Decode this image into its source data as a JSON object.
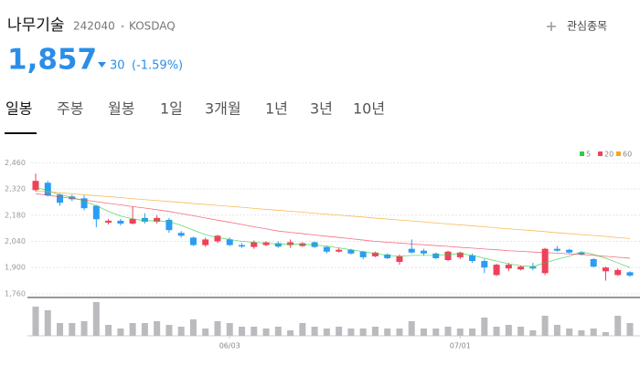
{
  "header": {
    "name": "나무기술",
    "code": "242040",
    "market": "KOSDAQ",
    "watch": "관심종목",
    "price": "1,857",
    "change": "30",
    "change_pct": "(-1.59%)"
  },
  "tabs": [
    "일봉",
    "주봉",
    "월봉",
    "1일",
    "3개월",
    "1년",
    "3년",
    "10년"
  ],
  "chart_data": {
    "type": "candlestick",
    "categories": [
      null,
      null,
      null,
      null,
      null,
      null,
      null,
      null,
      null,
      null,
      null,
      null,
      null,
      null,
      null,
      null,
      "06/03",
      null,
      null,
      null,
      null,
      null,
      null,
      null,
      null,
      null,
      null,
      null,
      null,
      null,
      null,
      null,
      null,
      null,
      null,
      "07/01",
      null,
      null,
      null,
      null,
      null,
      null,
      null,
      null,
      null,
      null,
      null,
      null,
      null,
      null
    ],
    "open": [
      2314,
      2353,
      2290,
      2280,
      2270,
      2230,
      2140,
      2150,
      2135,
      2165,
      2145,
      2155,
      2085,
      2060,
      2020,
      2040,
      2050,
      2020,
      2010,
      2020,
      2030,
      2020,
      2015,
      2035,
      2010,
      1985,
      1995,
      1985,
      1960,
      1970,
      1930,
      2000,
      1990,
      1975,
      1940,
      1955,
      1965,
      1935,
      1860,
      1895,
      1890,
      1905,
      1870,
      2000,
      1995,
      1980,
      1945,
      1880,
      1860,
      1875
    ],
    "high": [
      2402,
      2363,
      2295,
      2290,
      2285,
      2235,
      2160,
      2160,
      2225,
      2190,
      2180,
      2165,
      2095,
      2065,
      2060,
      2075,
      2060,
      2030,
      2045,
      2040,
      2040,
      2050,
      2035,
      2040,
      2015,
      2005,
      2000,
      1990,
      1985,
      1975,
      1970,
      2050,
      2000,
      1980,
      1990,
      1985,
      1975,
      1945,
      1920,
      1925,
      1910,
      1925,
      2005,
      2015,
      2000,
      1985,
      1950,
      1905,
      1895,
      1880
    ],
    "low": [
      2305,
      2280,
      2230,
      2255,
      2205,
      2115,
      2130,
      2125,
      2130,
      2135,
      2135,
      2085,
      2060,
      2015,
      2010,
      2030,
      2015,
      2005,
      2000,
      2015,
      2005,
      2005,
      2010,
      2005,
      1975,
      1980,
      1970,
      1945,
      1955,
      1945,
      1915,
      1975,
      1965,
      1945,
      1935,
      1945,
      1925,
      1870,
      1855,
      1880,
      1885,
      1885,
      1860,
      1985,
      1975,
      1965,
      1900,
      1830,
      1855,
      1850
    ],
    "close": [
      2363,
      2285,
      2246,
      2265,
      2217,
      2158,
      2150,
      2135,
      2160,
      2145,
      2165,
      2100,
      2070,
      2020,
      2050,
      2070,
      2020,
      2012,
      2035,
      2035,
      2012,
      2035,
      2030,
      2010,
      1985,
      1995,
      1975,
      1955,
      1980,
      1950,
      1960,
      1980,
      1975,
      1950,
      1985,
      1980,
      1935,
      1900,
      1915,
      1915,
      1905,
      1895,
      2000,
      1990,
      1980,
      1970,
      1905,
      1900,
      1887,
      1857
    ],
    "volume": [
      32,
      28,
      14,
      14,
      16,
      37,
      12,
      8,
      14,
      14,
      16,
      12,
      10,
      18,
      8,
      16,
      14,
      10,
      10,
      8,
      10,
      6,
      14,
      10,
      8,
      10,
      8,
      8,
      10,
      8,
      8,
      16,
      8,
      8,
      10,
      8,
      8,
      20,
      10,
      12,
      10,
      6,
      22,
      12,
      8,
      6,
      8,
      4,
      22,
      14
    ],
    "up_color": "#f0405a",
    "down_color": "#2a9df4",
    "volume_color": "#bbbbbf",
    "series": [
      {
        "name": "5",
        "color": "#2ecc40",
        "values": [
          2330,
          2310,
          2290,
          2275,
          2255,
          2230,
          2200,
          2175,
          2160,
          2150,
          2150,
          2145,
          2125,
          2100,
          2075,
          2060,
          2050,
          2040,
          2035,
          2030,
          2025,
          2025,
          2025,
          2020,
          2015,
          2005,
          1995,
          1985,
          1975,
          1965,
          1960,
          1965,
          1965,
          1965,
          1970,
          1975,
          1965,
          1950,
          1935,
          1920,
          1910,
          1905,
          1925,
          1945,
          1960,
          1985,
          1970,
          1950,
          1925,
          1900
        ]
      },
      {
        "name": "20",
        "color": "#f0405a",
        "values": [
          2295,
          2286,
          2278,
          2269,
          2261,
          2252,
          2243,
          2235,
          2226,
          2218,
          2209,
          2200,
          2188,
          2177,
          2165,
          2153,
          2142,
          2130,
          2118,
          2107,
          2095,
          2088,
          2081,
          2074,
          2067,
          2061,
          2054,
          2047,
          2040,
          2035,
          2031,
          2026,
          2022,
          2017,
          2013,
          2008,
          2004,
          1999,
          1995,
          1990,
          1987,
          1983,
          1980,
          1977,
          1973,
          1970,
          1965,
          1960,
          1955,
          1950
        ]
      },
      {
        "name": "60",
        "color": "#f5a623",
        "values": [
          2310,
          2305,
          2300,
          2294,
          2289,
          2284,
          2279,
          2274,
          2268,
          2263,
          2258,
          2253,
          2248,
          2242,
          2237,
          2232,
          2227,
          2222,
          2216,
          2211,
          2206,
          2201,
          2196,
          2190,
          2185,
          2180,
          2175,
          2170,
          2164,
          2159,
          2154,
          2149,
          2144,
          2138,
          2133,
          2128,
          2123,
          2118,
          2112,
          2107,
          2102,
          2097,
          2092,
          2086,
          2081,
          2076,
          2071,
          2066,
          2060,
          2055
        ]
      }
    ],
    "ylim": [
      1740,
      2530
    ],
    "yticks": [
      {
        "value": 2460,
        "label": "2,460"
      },
      {
        "value": 2320,
        "label": "2,320"
      },
      {
        "value": 2180,
        "label": "2,180"
      },
      {
        "value": 2040,
        "label": "2,040"
      },
      {
        "value": 1900,
        "label": "1,900"
      },
      {
        "value": 1760,
        "label": "1,760"
      }
    ],
    "volume_ylim": [
      0,
      40
    ],
    "grid": true
  }
}
